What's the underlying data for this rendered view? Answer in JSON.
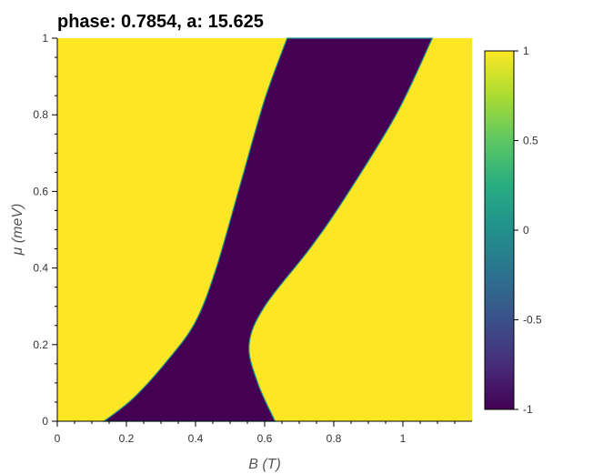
{
  "chart_data": {
    "type": "heatmap",
    "title": "phase: 0.7854, a: 15.625",
    "xlabel": "B (T)",
    "ylabel": "μ (meV)",
    "xlim": [
      0,
      1.2
    ],
    "ylim": [
      0,
      1
    ],
    "x_ticks": [
      "0",
      "0.2",
      "0.4",
      "0.6",
      "0.8",
      "1"
    ],
    "y_ticks": [
      "0",
      "0.2",
      "0.4",
      "0.6",
      "0.8",
      "1"
    ],
    "colorbar": {
      "range": [
        -1,
        1
      ],
      "ticks": [
        "1",
        "0.5",
        "0",
        "-0.5",
        "-1"
      ],
      "colormap": "viridis"
    },
    "colors": {
      "high": "#fde725",
      "low": "#440154",
      "edge": "#21918c"
    },
    "region_value": -1,
    "background_value": 1,
    "region_left_boundary": [
      [
        0.135,
        0.0
      ],
      [
        0.22,
        0.06
      ],
      [
        0.32,
        0.16
      ],
      [
        0.4,
        0.26
      ],
      [
        0.46,
        0.4
      ],
      [
        0.53,
        0.62
      ],
      [
        0.6,
        0.84
      ],
      [
        0.665,
        1.0
      ]
    ],
    "region_right_boundary": [
      [
        0.63,
        0.0
      ],
      [
        0.58,
        0.1
      ],
      [
        0.555,
        0.2
      ],
      [
        0.6,
        0.3
      ],
      [
        0.73,
        0.45
      ],
      [
        0.83,
        0.58
      ],
      [
        0.98,
        0.8
      ],
      [
        1.085,
        1.0
      ]
    ]
  }
}
